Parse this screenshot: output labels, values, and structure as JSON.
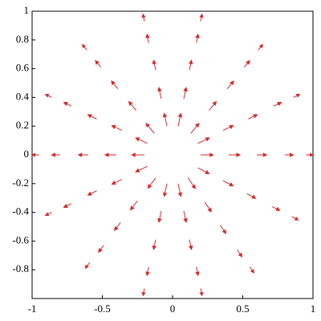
{
  "chart_data": {
    "type": "quiver",
    "color": "#d42a2a",
    "xlim": [
      -1,
      1
    ],
    "ylim": [
      -1,
      1
    ],
    "xticks": [
      -1,
      -0.5,
      0,
      0.5,
      1
    ],
    "yticks": [
      -0.8,
      -0.6,
      -0.4,
      -0.2,
      0,
      0.2,
      0.4,
      0.6,
      0.8,
      1
    ],
    "x": [
      0.2,
      0.4,
      0.6,
      0.8,
      0.95,
      0.18,
      0.36,
      0.54,
      0.72,
      0.86,
      0.13,
      0.26,
      0.39,
      0.51,
      0.61,
      0.04,
      0.08,
      0.12,
      0.17,
      0.2,
      -0.04,
      -0.08,
      -0.12,
      -0.17,
      -0.2,
      -0.13,
      -0.26,
      -0.39,
      -0.51,
      -0.61,
      -0.18,
      -0.36,
      -0.54,
      -0.72,
      -0.86,
      -0.2,
      -0.4,
      -0.6,
      -0.8,
      -0.95,
      -0.18,
      -0.36,
      -0.54,
      -0.72,
      -0.86,
      -0.12,
      -0.25,
      -0.37,
      -0.49,
      -0.59,
      -0.04,
      -0.08,
      -0.12,
      -0.17,
      -0.2,
      0.04,
      0.08,
      0.12,
      0.17,
      0.2,
      0.11,
      0.23,
      0.34,
      0.46,
      0.55,
      0.18,
      0.36,
      0.53,
      0.71,
      0.85
    ],
    "y": [
      0,
      0,
      0,
      0,
      0,
      0.08,
      0.17,
      0.25,
      0.34,
      0.4,
      0.15,
      0.31,
      0.46,
      0.61,
      0.73,
      0.2,
      0.39,
      0.59,
      0.78,
      0.93,
      0.2,
      0.39,
      0.59,
      0.78,
      0.93,
      0.15,
      0.31,
      0.46,
      0.61,
      0.73,
      0.08,
      0.17,
      0.25,
      0.34,
      0.4,
      0,
      0,
      0,
      0,
      0,
      -0.08,
      -0.17,
      -0.25,
      -0.34,
      -0.4,
      -0.16,
      -0.32,
      -0.47,
      -0.63,
      -0.75,
      -0.2,
      -0.39,
      -0.59,
      -0.78,
      -0.93,
      -0.2,
      -0.39,
      -0.59,
      -0.78,
      -0.93,
      -0.16,
      -0.33,
      -0.49,
      -0.66,
      -0.78,
      -0.09,
      -0.18,
      -0.27,
      -0.36,
      -0.43
    ],
    "u": [
      0.09,
      0.08,
      0.07,
      0.06,
      0.05,
      0.082,
      0.072,
      0.063,
      0.054,
      0.045,
      0.058,
      0.051,
      0.045,
      0.039,
      0.032,
      0.019,
      0.017,
      0.015,
      0.012,
      0.01,
      -0.019,
      -0.017,
      -0.015,
      -0.012,
      -0.01,
      -0.058,
      -0.051,
      -0.045,
      -0.039,
      -0.032,
      -0.082,
      -0.072,
      -0.063,
      -0.054,
      -0.045,
      -0.09,
      -0.08,
      -0.07,
      -0.06,
      -0.05,
      -0.082,
      -0.072,
      -0.063,
      -0.054,
      -0.045,
      -0.055,
      -0.049,
      -0.043,
      -0.037,
      -0.031,
      -0.019,
      -0.017,
      -0.015,
      -0.012,
      -0.01,
      0.019,
      0.017,
      0.015,
      0.012,
      0.01,
      0.052,
      0.046,
      0.04,
      0.034,
      0.029,
      0.08,
      0.071,
      0.062,
      0.053,
      0.045
    ],
    "v": [
      0,
      0,
      0,
      0,
      0,
      0.038,
      0.034,
      0.03,
      0.025,
      0.021,
      0.069,
      0.061,
      0.054,
      0.046,
      0.038,
      0.088,
      0.078,
      0.068,
      0.059,
      0.049,
      0.088,
      0.078,
      0.068,
      0.059,
      0.049,
      0.069,
      0.061,
      0.054,
      0.046,
      0.038,
      0.038,
      0.034,
      0.03,
      0.025,
      0.021,
      0,
      0,
      0,
      0,
      0,
      -0.038,
      -0.034,
      -0.03,
      -0.025,
      -0.021,
      -0.071,
      -0.063,
      -0.055,
      -0.047,
      -0.039,
      -0.088,
      -0.078,
      -0.068,
      -0.059,
      -0.049,
      -0.088,
      -0.078,
      -0.068,
      -0.059,
      -0.049,
      -0.074,
      -0.066,
      -0.057,
      -0.049,
      -0.041,
      -0.041,
      -0.036,
      -0.032,
      -0.027,
      -0.023
    ]
  }
}
